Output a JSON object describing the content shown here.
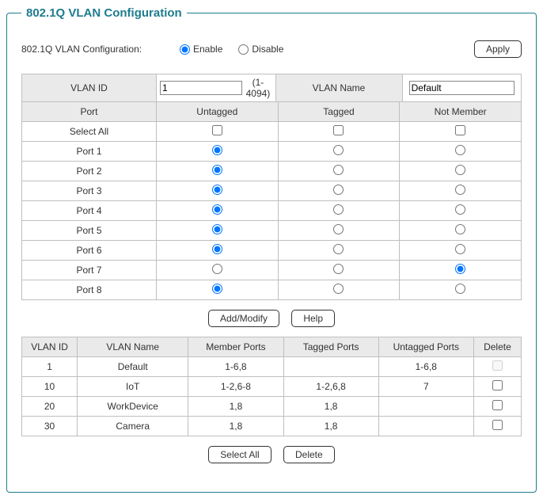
{
  "legend": "802.1Q VLAN Configuration",
  "top": {
    "label": "802.1Q VLAN Configuration:",
    "enable_label": "Enable",
    "disable_label": "Disable",
    "selected": "enable",
    "apply_label": "Apply"
  },
  "hdr": {
    "vlan_id": "VLAN ID",
    "vlan_name": "VLAN Name",
    "id_value": "1",
    "id_hint": "(1-4094)",
    "name_value": "Default"
  },
  "port_cols": {
    "port": "Port",
    "untagged": "Untagged",
    "tagged": "Tagged",
    "notmember": "Not Member",
    "select_all": "Select All"
  },
  "ports": [
    {
      "name": "Port 1",
      "sel": "untagged"
    },
    {
      "name": "Port 2",
      "sel": "untagged"
    },
    {
      "name": "Port 3",
      "sel": "untagged"
    },
    {
      "name": "Port 4",
      "sel": "untagged"
    },
    {
      "name": "Port 5",
      "sel": "untagged"
    },
    {
      "name": "Port 6",
      "sel": "untagged"
    },
    {
      "name": "Port 7",
      "sel": "notmember"
    },
    {
      "name": "Port 8",
      "sel": "untagged"
    }
  ],
  "mid_buttons": {
    "addmodify": "Add/Modify",
    "help": "Help"
  },
  "list_cols": {
    "id": "VLAN ID",
    "name": "VLAN Name",
    "member": "Member Ports",
    "tagged": "Tagged Ports",
    "untagged": "Untagged Ports",
    "delete": "Delete"
  },
  "list": [
    {
      "id": "1",
      "name": "Default",
      "member": "1-6,8",
      "tagged": "",
      "untagged": "1-6,8",
      "deletable": false
    },
    {
      "id": "10",
      "name": "IoT",
      "member": "1-2,6-8",
      "tagged": "1-2,6,8",
      "untagged": "7",
      "deletable": true
    },
    {
      "id": "20",
      "name": "WorkDevice",
      "member": "1,8",
      "tagged": "1,8",
      "untagged": "",
      "deletable": true
    },
    {
      "id": "30",
      "name": "Camera",
      "member": "1,8",
      "tagged": "1,8",
      "untagged": "",
      "deletable": true
    }
  ],
  "bottom_buttons": {
    "select_all": "Select All",
    "delete": "Delete"
  },
  "colors": {
    "accent": "#1e7c8e",
    "border": "#bfbfbf",
    "header_bg": "#eaeaea"
  }
}
